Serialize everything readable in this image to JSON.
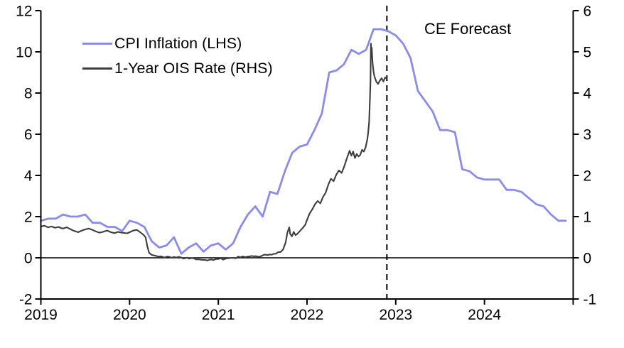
{
  "chart_data": {
    "type": "line",
    "title": "",
    "annotation": "CE Forecast",
    "legend_position": "top-left",
    "grid": false,
    "x_range": [
      2019,
      2025
    ],
    "lhs_range": [
      -2,
      12
    ],
    "rhs_range": [
      -1,
      6
    ],
    "lhs_ticks": [
      "12",
      "10",
      "8",
      "6",
      "4",
      "2",
      "0",
      "-2"
    ],
    "lhs_tick_values": [
      12,
      10,
      8,
      6,
      4,
      2,
      0,
      -2
    ],
    "rhs_ticks": [
      "6",
      "5",
      "4",
      "3",
      "2",
      "1",
      "0",
      "-1"
    ],
    "rhs_tick_values": [
      6,
      5,
      4,
      3,
      2,
      1,
      0,
      -1
    ],
    "x_ticks": [
      "2019",
      "2020",
      "2021",
      "2022",
      "2023",
      "2024"
    ],
    "x_tick_values": [
      2019,
      2020,
      2021,
      2022,
      2023,
      2024
    ],
    "forecast_line_x": 2022.9,
    "colors": {
      "cpi": "#8b8be8",
      "ois": "#3d3d3d",
      "axis": "#000000",
      "forecast_divider": "#000000"
    },
    "legend": [
      {
        "label": "CPI Inflation (LHS)",
        "color": "#8b8be8"
      },
      {
        "label": "1-Year OIS Rate (RHS)",
        "color": "#3d3d3d"
      }
    ],
    "series": [
      {
        "name": "CPI Inflation (LHS)",
        "axis": "lhs",
        "color": "#8b8be8",
        "start_year": 2019,
        "interval": "monthly",
        "values": [
          1.8,
          1.9,
          1.9,
          2.1,
          2.0,
          2.0,
          2.1,
          1.7,
          1.7,
          1.5,
          1.5,
          1.3,
          1.8,
          1.7,
          1.5,
          0.8,
          0.5,
          0.6,
          1.0,
          0.2,
          0.5,
          0.7,
          0.3,
          0.6,
          0.7,
          0.4,
          0.7,
          1.5,
          2.1,
          2.5,
          2.0,
          3.2,
          3.1,
          4.2,
          5.1,
          5.4,
          5.5,
          6.2,
          7.0,
          9.0,
          9.1,
          9.4,
          10.1,
          9.9,
          10.1,
          11.1,
          11.1,
          11.0,
          10.8,
          10.4,
          9.7,
          8.1,
          7.6,
          7.1,
          6.2,
          6.2,
          6.1,
          4.3,
          4.2,
          3.9,
          3.8,
          3.8,
          3.8,
          3.3,
          3.3,
          3.2,
          2.9,
          2.6,
          2.5,
          2.1,
          1.8,
          1.8
        ]
      },
      {
        "name": "1-Year OIS Rate (RHS)",
        "axis": "rhs",
        "color": "#3d3d3d",
        "interval": "points",
        "points": [
          [
            2019.0,
            0.76
          ],
          [
            2019.04,
            0.78
          ],
          [
            2019.08,
            0.74
          ],
          [
            2019.12,
            0.76
          ],
          [
            2019.16,
            0.73
          ],
          [
            2019.2,
            0.75
          ],
          [
            2019.25,
            0.71
          ],
          [
            2019.29,
            0.74
          ],
          [
            2019.33,
            0.7
          ],
          [
            2019.38,
            0.65
          ],
          [
            2019.42,
            0.62
          ],
          [
            2019.46,
            0.66
          ],
          [
            2019.5,
            0.69
          ],
          [
            2019.54,
            0.71
          ],
          [
            2019.58,
            0.68
          ],
          [
            2019.62,
            0.64
          ],
          [
            2019.66,
            0.61
          ],
          [
            2019.7,
            0.63
          ],
          [
            2019.75,
            0.66
          ],
          [
            2019.79,
            0.62
          ],
          [
            2019.83,
            0.6
          ],
          [
            2019.87,
            0.63
          ],
          [
            2019.91,
            0.61
          ],
          [
            2019.95,
            0.6
          ],
          [
            2020.0,
            0.62
          ],
          [
            2020.04,
            0.66
          ],
          [
            2020.08,
            0.68
          ],
          [
            2020.12,
            0.62
          ],
          [
            2020.16,
            0.55
          ],
          [
            2020.18,
            0.5
          ],
          [
            2020.2,
            0.28
          ],
          [
            2020.22,
            0.12
          ],
          [
            2020.25,
            0.07
          ],
          [
            2020.29,
            0.05
          ],
          [
            2020.33,
            0.03
          ],
          [
            2020.42,
            0.03
          ],
          [
            2020.5,
            0.02
          ],
          [
            2020.58,
            0.01
          ],
          [
            2020.67,
            -0.02
          ],
          [
            2020.75,
            -0.04
          ],
          [
            2020.83,
            -0.05
          ],
          [
            2020.92,
            -0.04
          ],
          [
            2021.0,
            -0.03
          ],
          [
            2021.08,
            -0.02
          ],
          [
            2021.17,
            0.0
          ],
          [
            2021.25,
            0.01
          ],
          [
            2021.33,
            0.03
          ],
          [
            2021.42,
            0.04
          ],
          [
            2021.5,
            0.06
          ],
          [
            2021.58,
            0.08
          ],
          [
            2021.65,
            0.1
          ],
          [
            2021.7,
            0.14
          ],
          [
            2021.73,
            0.2
          ],
          [
            2021.76,
            0.38
          ],
          [
            2021.78,
            0.62
          ],
          [
            2021.8,
            0.74
          ],
          [
            2021.81,
            0.58
          ],
          [
            2021.83,
            0.52
          ],
          [
            2021.85,
            0.63
          ],
          [
            2021.87,
            0.55
          ],
          [
            2021.89,
            0.58
          ],
          [
            2021.92,
            0.65
          ],
          [
            2021.95,
            0.72
          ],
          [
            2021.98,
            0.8
          ],
          [
            2022.0,
            0.92
          ],
          [
            2022.03,
            1.08
          ],
          [
            2022.06,
            1.18
          ],
          [
            2022.09,
            1.3
          ],
          [
            2022.12,
            1.38
          ],
          [
            2022.15,
            1.32
          ],
          [
            2022.18,
            1.48
          ],
          [
            2022.21,
            1.58
          ],
          [
            2022.24,
            1.78
          ],
          [
            2022.27,
            1.92
          ],
          [
            2022.3,
            1.86
          ],
          [
            2022.33,
            2.02
          ],
          [
            2022.36,
            2.12
          ],
          [
            2022.39,
            2.06
          ],
          [
            2022.42,
            2.22
          ],
          [
            2022.45,
            2.42
          ],
          [
            2022.48,
            2.6
          ],
          [
            2022.5,
            2.48
          ],
          [
            2022.52,
            2.58
          ],
          [
            2022.54,
            2.42
          ],
          [
            2022.56,
            2.52
          ],
          [
            2022.58,
            2.46
          ],
          [
            2022.6,
            2.5
          ],
          [
            2022.62,
            2.62
          ],
          [
            2022.64,
            2.58
          ],
          [
            2022.66,
            2.68
          ],
          [
            2022.68,
            2.88
          ],
          [
            2022.69,
            3.05
          ],
          [
            2022.7,
            3.3
          ],
          [
            2022.705,
            3.6
          ],
          [
            2022.71,
            3.9
          ],
          [
            2022.715,
            4.3
          ],
          [
            2022.72,
            5.2
          ],
          [
            2022.725,
            4.9
          ],
          [
            2022.73,
            5.1
          ],
          [
            2022.735,
            4.85
          ],
          [
            2022.74,
            4.7
          ],
          [
            2022.75,
            4.52
          ],
          [
            2022.76,
            4.4
          ],
          [
            2022.78,
            4.28
          ],
          [
            2022.8,
            4.22
          ],
          [
            2022.82,
            4.3
          ],
          [
            2022.84,
            4.36
          ],
          [
            2022.86,
            4.28
          ],
          [
            2022.88,
            4.38
          ],
          [
            2022.9,
            4.35
          ]
        ]
      }
    ]
  }
}
